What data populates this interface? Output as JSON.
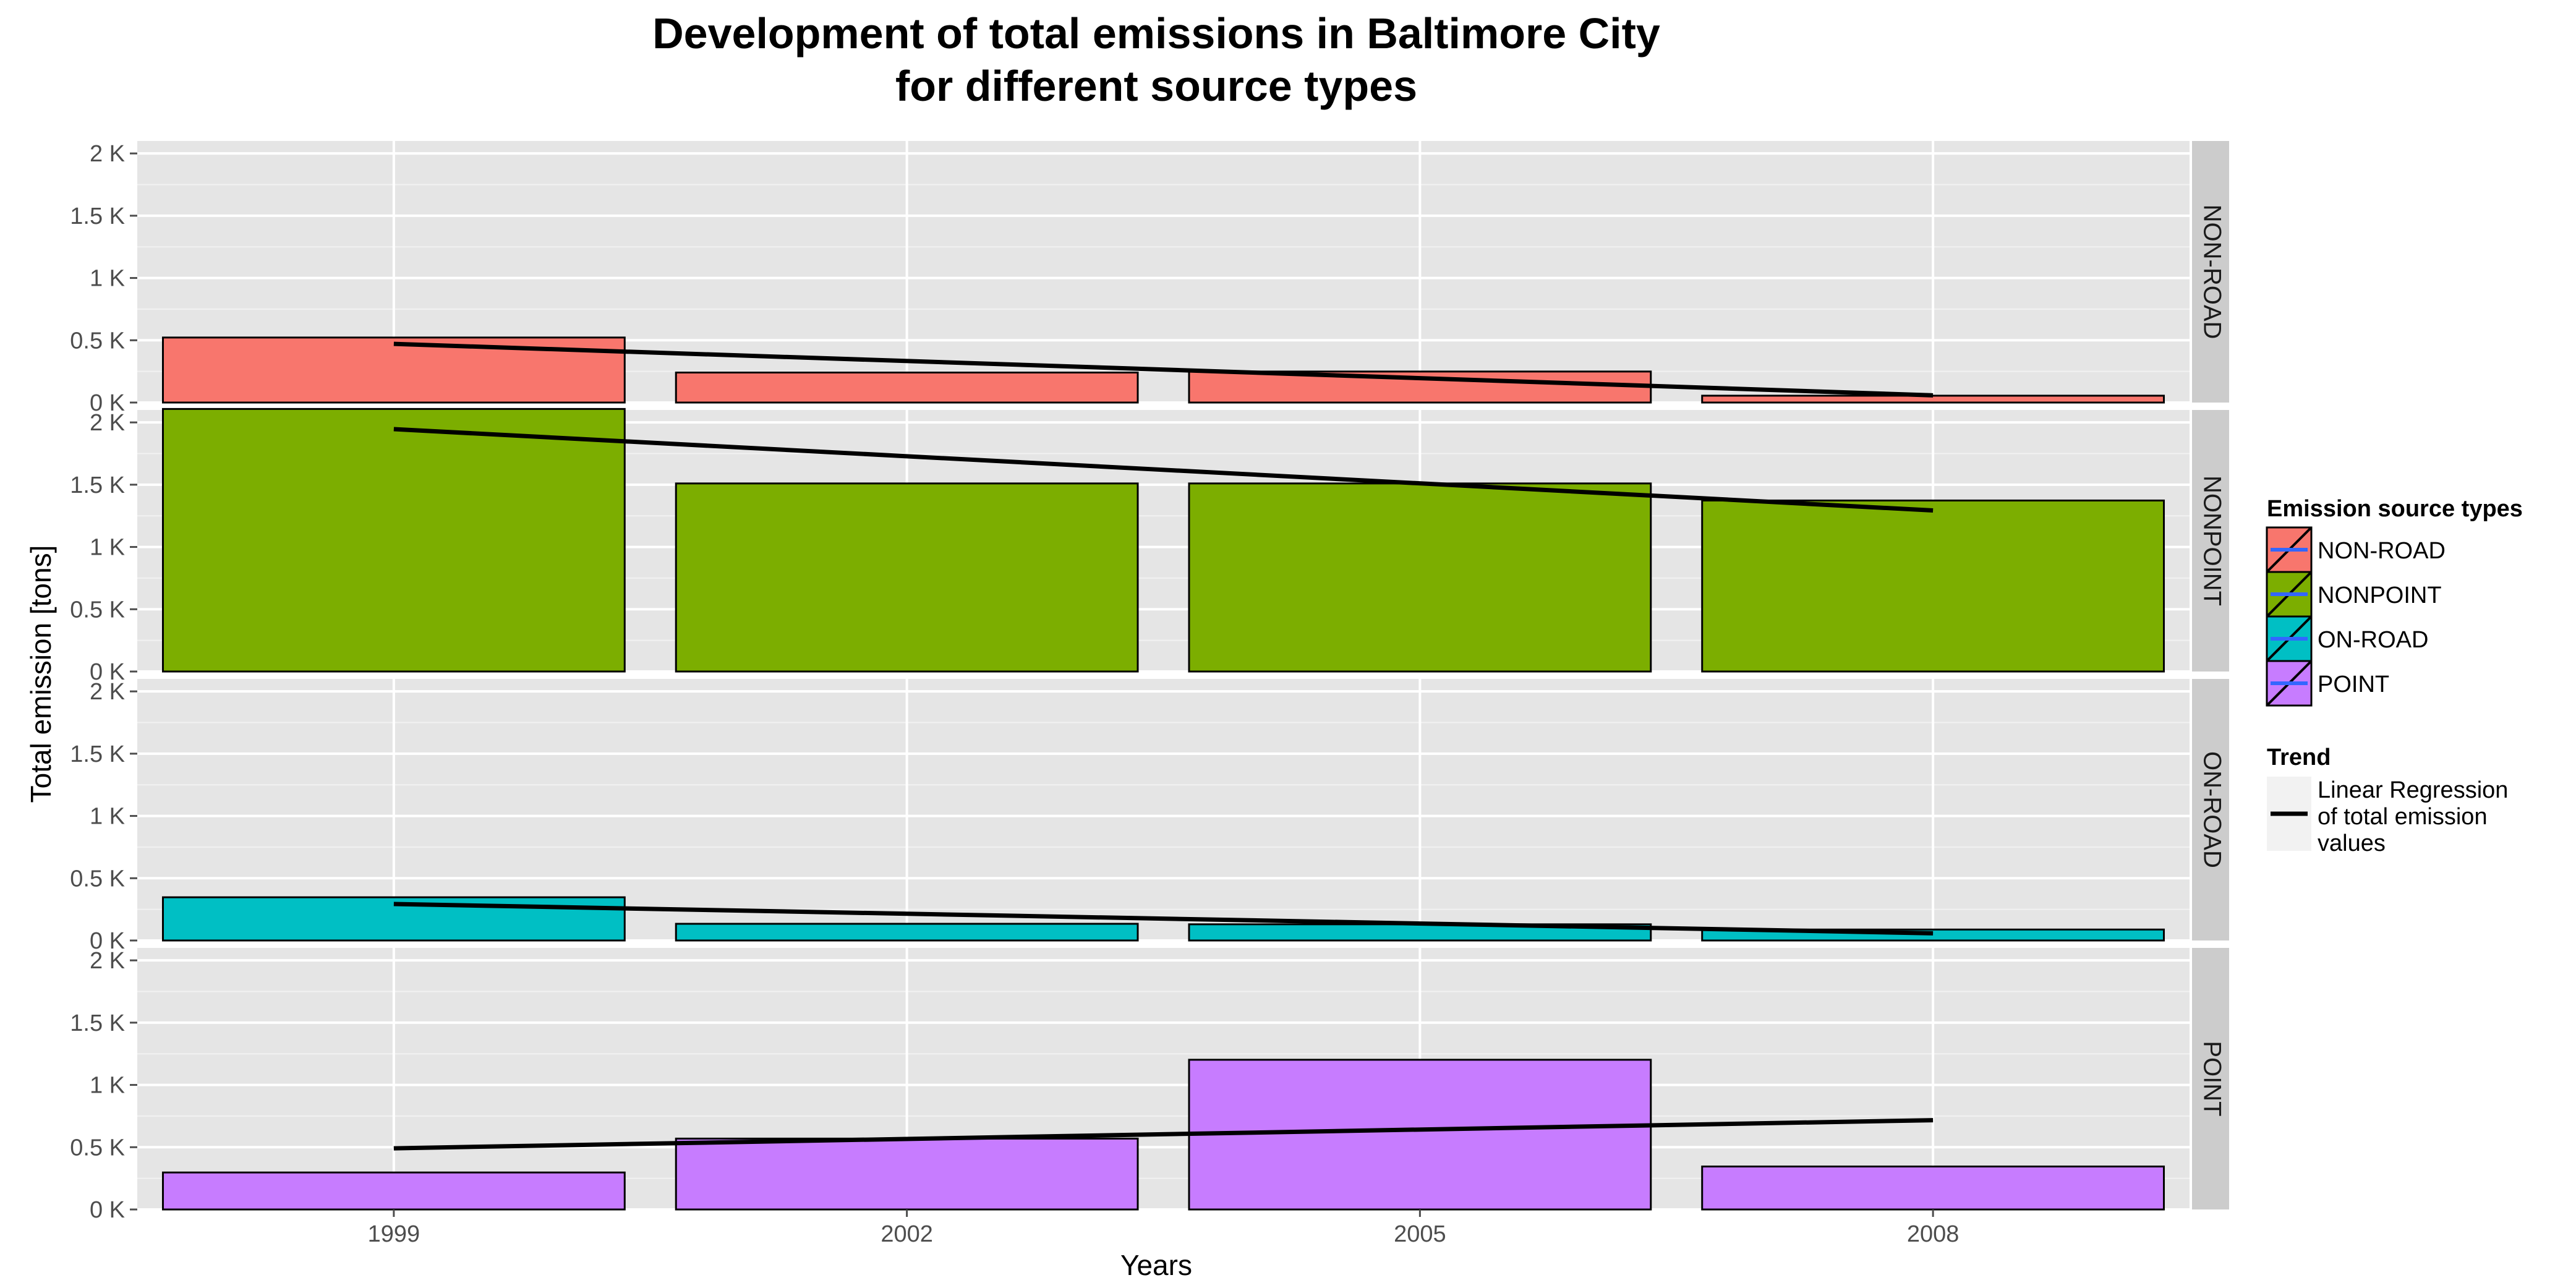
{
  "chart_data": {
    "type": "bar",
    "title_lines": [
      "Development of total emissions in Baltimore City",
      "for different source types"
    ],
    "xlabel": "Years",
    "ylabel": "Total emission [tons]",
    "x": [
      1999,
      2002,
      2005,
      2008
    ],
    "x_tick_labels": [
      "1999",
      "2002",
      "2005",
      "2008"
    ],
    "ylim": [
      0,
      2.1
    ],
    "y_ticks": [
      0,
      0.5,
      1,
      1.5,
      2
    ],
    "y_tick_labels": [
      "0 K",
      "0.5 K",
      "1 K",
      "1.5 K",
      "2 K"
    ],
    "y_unit": "thousand tons",
    "grid": true,
    "facets": [
      {
        "name": "NON-ROAD",
        "color": "#F8766D",
        "values": [
          0.522,
          0.241,
          0.249,
          0.055
        ],
        "trend": {
          "start": 0.471,
          "end": 0.058
        }
      },
      {
        "name": "NONPOINT",
        "color": "#7CAE00",
        "values": [
          2.108,
          1.51,
          1.51,
          1.373
        ],
        "trend": {
          "start": 1.946,
          "end": 1.293
        }
      },
      {
        "name": "ON-ROAD",
        "color": "#00BFC4",
        "values": [
          0.347,
          0.134,
          0.13,
          0.088
        ],
        "trend": {
          "start": 0.293,
          "end": 0.058
        }
      },
      {
        "name": "POINT",
        "color": "#C77CFF",
        "values": [
          0.297,
          0.569,
          1.202,
          0.345
        ],
        "trend": {
          "start": 0.491,
          "end": 0.717
        }
      }
    ],
    "legend": {
      "placement": "right",
      "fill_title": "Emission source types",
      "fill_items": [
        "NON-ROAD",
        "NONPOINT",
        "ON-ROAD",
        "POINT"
      ],
      "line_title": "Trend",
      "line_label_lines": [
        "Linear Regression",
        " of total emission",
        " values"
      ]
    }
  }
}
